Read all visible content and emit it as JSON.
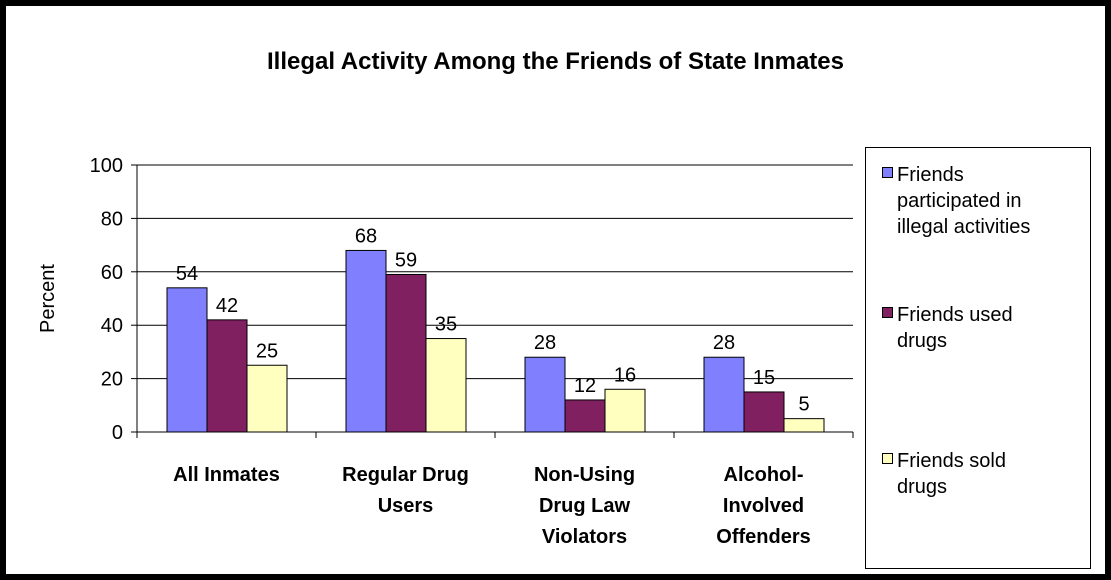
{
  "chart_data": {
    "type": "bar",
    "title": "Illegal Activity Among the Friends of State Inmates",
    "ylabel": "Percent",
    "xlabel": "",
    "ylim": [
      0,
      100
    ],
    "yticks": [
      0,
      20,
      40,
      60,
      80,
      100
    ],
    "grid": true,
    "legend_position": "right",
    "categories": [
      [
        "All Inmates"
      ],
      [
        "Regular Drug",
        "Users"
      ],
      [
        "Non-Using",
        "Drug Law",
        "Violators"
      ],
      [
        "Alcohol-",
        "Involved",
        "Offenders"
      ]
    ],
    "series": [
      {
        "name": [
          "Friends",
          "participated in",
          "illegal activities"
        ],
        "values": [
          54,
          68,
          28,
          28
        ],
        "color": "#8080ff"
      },
      {
        "name": [
          "Friends used",
          "drugs"
        ],
        "values": [
          42,
          59,
          12,
          15
        ],
        "color": "#802060"
      },
      {
        "name": [
          "Friends sold",
          "drugs"
        ],
        "values": [
          25,
          35,
          16,
          5
        ],
        "color": "#ffffc0"
      }
    ]
  }
}
